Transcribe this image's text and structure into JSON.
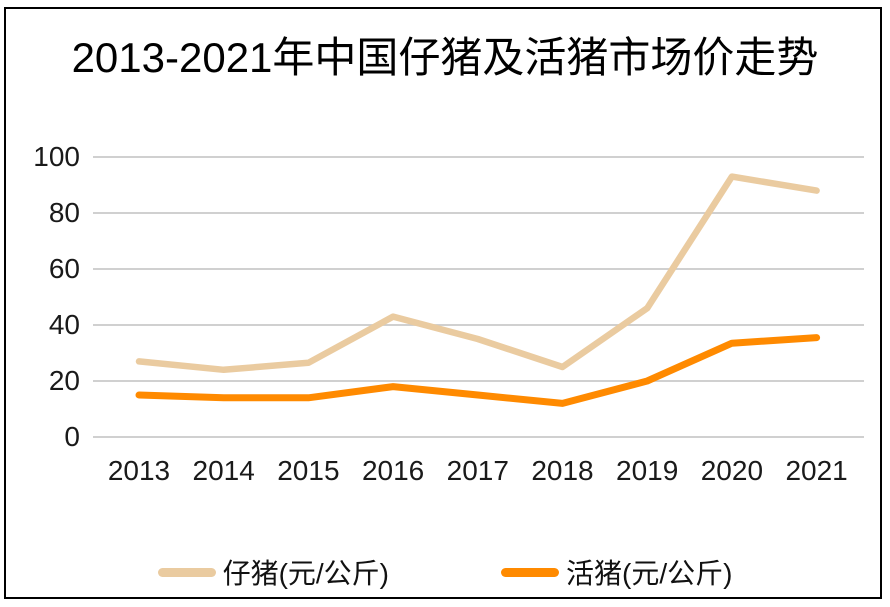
{
  "chart": {
    "accent_colors": {
      "piglet": "#EACBA0",
      "live_pig": "#FF8A00",
      "gridline": "#C9C9C9",
      "frame": "#000000"
    }
  },
  "chart_data": {
    "type": "line",
    "title": "2013-2021年中国仔猪及活猪市场价走势",
    "categories": [
      "2013",
      "2014",
      "2015",
      "2016",
      "2017",
      "2018",
      "2019",
      "2020",
      "2021"
    ],
    "series": [
      {
        "name": "仔猪(元/公斤)",
        "color": "#EACBA0",
        "stroke_width": 6.5,
        "values": [
          27,
          24,
          26.5,
          43,
          35,
          25,
          46,
          93,
          88
        ]
      },
      {
        "name": "活猪(元/公斤)",
        "color": "#FF8A00",
        "stroke_width": 7,
        "values": [
          15,
          14,
          14,
          18,
          15,
          12,
          20,
          33.5,
          35.5
        ]
      }
    ],
    "xlabel": "",
    "ylabel": "",
    "ylim": [
      0,
      100
    ],
    "yticks": [
      0,
      20,
      40,
      60,
      80,
      100
    ],
    "grid": "horizontal",
    "legend_position": "bottom"
  }
}
